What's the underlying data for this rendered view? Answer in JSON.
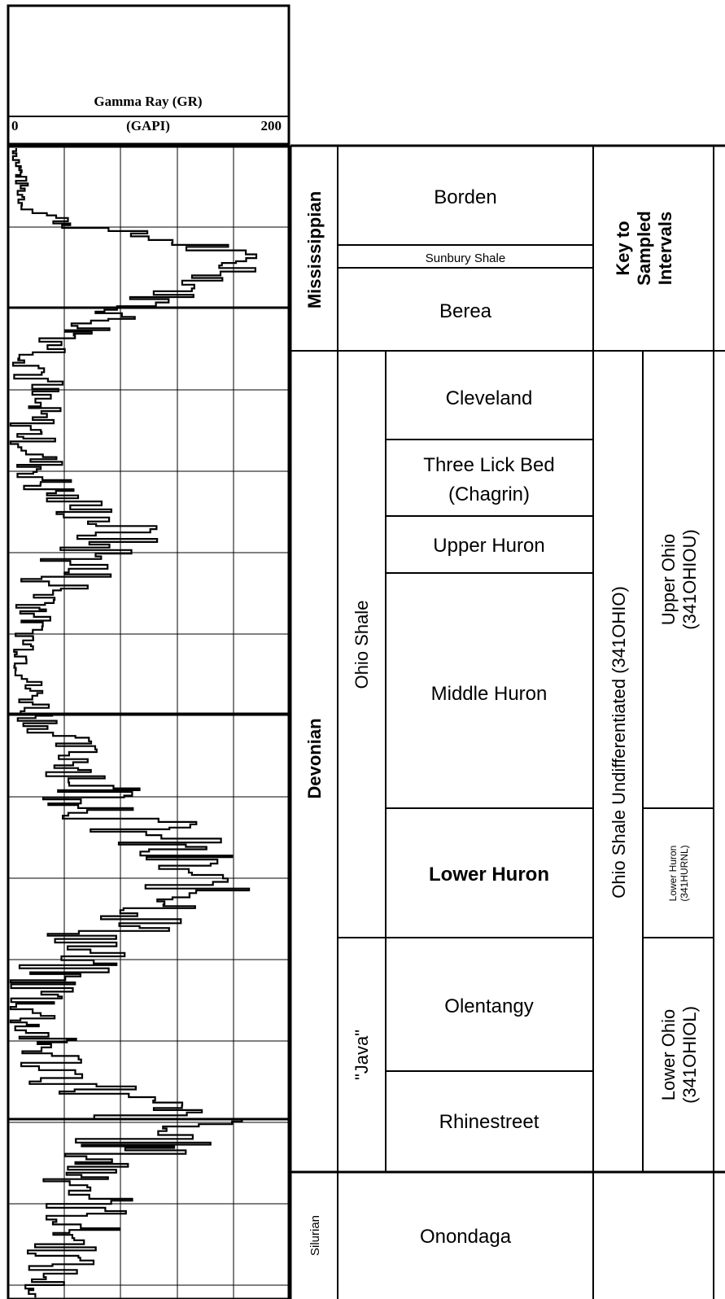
{
  "log_header": {
    "title": "Gamma Ray (GR)",
    "unit": "(GAPI)",
    "scale_min": "0",
    "scale_max": "200"
  },
  "systems": {
    "mississippian": "Mississippian",
    "devonian": "Devonian",
    "silurian": "Silurian"
  },
  "formations": {
    "borden": "Borden",
    "sunbury": "Sunbury Shale",
    "berea": "Berea",
    "ohio_shale": "Ohio Shale",
    "java": "\"Java\"",
    "cleveland": "Cleveland",
    "three_lick_1": "Three Lick Bed",
    "three_lick_2": "(Chagrin)",
    "upper_huron": "Upper Huron",
    "middle_huron": "Middle Huron",
    "lower_huron": "Lower Huron",
    "olentangy": "Olentangy",
    "rhinestreet": "Rhinestreet",
    "onondaga": "Onondaga"
  },
  "key": {
    "title_1": "Key to",
    "title_2": "Sampled",
    "title_3": "Intervals",
    "ohio_undiff": "Ohio Shale Undifferentiated (341OHIO)",
    "upper_ohio_1": "Upper Ohio",
    "upper_ohio_2": "(341OHIOU)",
    "lower_huron_1": "Lower Huron",
    "lower_huron_2": "(341HURNL)",
    "lower_ohio_1": "Lower Ohio",
    "lower_ohio_2": "(341OHIOL)"
  }
}
